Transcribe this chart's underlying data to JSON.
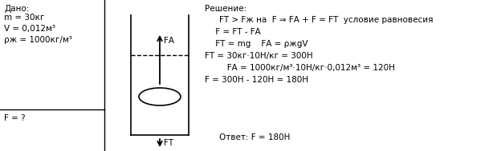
{
  "bg_color": "#ffffff",
  "text_color": "#000000",
  "dado_title": "Дано:",
  "dado_lines": [
    "m = 30кг",
    "V = 0,012м³",
    "ρж = 1000кг/м³"
  ],
  "question": "F = ?",
  "solution_title": "Решение:",
  "solution_lines": [
    "FТ > Fж на  F ⇒ FА + F = FТ  условие равновесия",
    " F = FТ - FА",
    " FТ = mg    FА = ρжgV",
    "FТ = 30кг·10Н/кг = 300Н",
    "   FА = 1000кг/м³·10Н/кг·0,012м³ = 120Н",
    "F = 300Н - 120Н = 180Н"
  ],
  "answer": "Ответ: F = 180Н",
  "fontsize_main": 7.5
}
